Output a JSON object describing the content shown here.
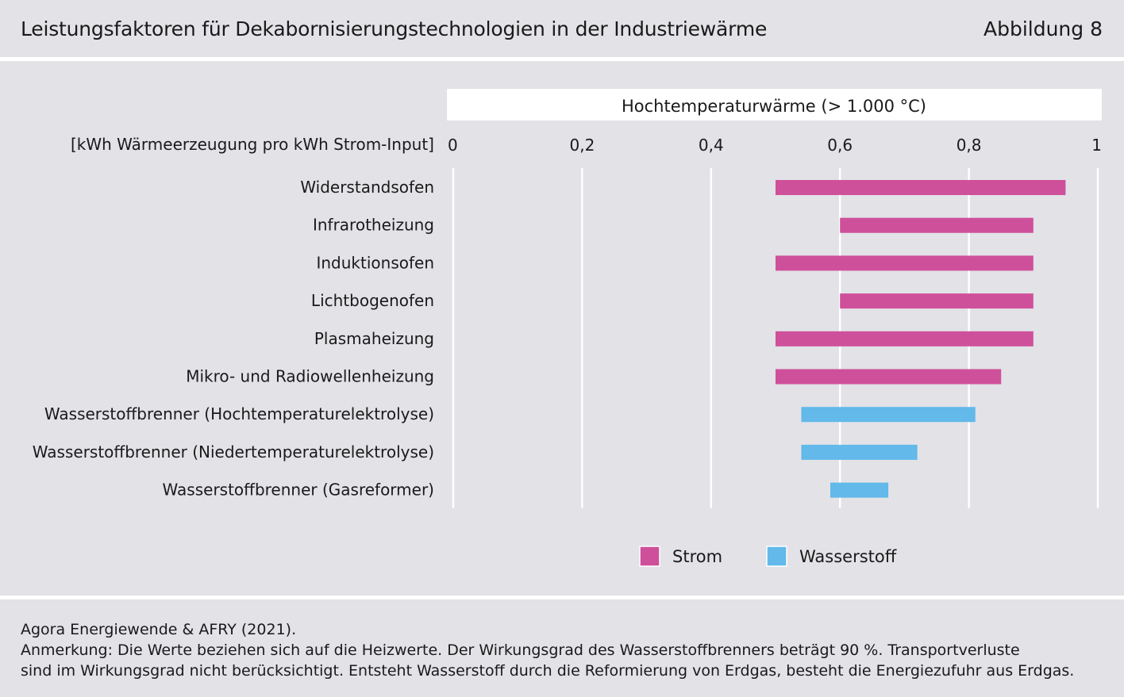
{
  "header": {
    "title": "Leistungsfaktoren für Dekabornisierungstechnologien in der Industriewärme",
    "figure_label": "Abbildung 8"
  },
  "chart_data": {
    "type": "bar",
    "subtype": "floating-range-horizontal",
    "panel_title": "Hochtemperaturwärme (> 1.000 °C)",
    "unit_label": "[kWh Wärmeerzeugung pro kWh Strom-Input]",
    "xlim": [
      0,
      1
    ],
    "xticks": [
      0,
      0.2,
      0.4,
      0.6,
      0.8,
      1
    ],
    "xtick_labels": [
      "0",
      "0,2",
      "0,4",
      "0,6",
      "0,8",
      "1"
    ],
    "grid": "vertical",
    "legend_position": "bottom-center",
    "series": [
      {
        "name": "Strom",
        "color": "#cf509a"
      },
      {
        "name": "Wasserstoff",
        "color": "#62b9ea"
      }
    ],
    "categories": [
      "Widerstandsofen",
      "Infrarotheizung",
      "Induktionsofen",
      "Lichtbogenofen",
      "Plasmaheizung",
      "Mikro- und Radiowellenheizung",
      "Wasserstoffbrenner (Hochtemperaturelektrolyse)",
      "Wasserstoffbrenner (Niedertemperaturelektrolyse)",
      "Wasserstoffbrenner (Gasreformer)"
    ],
    "ranges": [
      {
        "category": "Widerstandsofen",
        "series": "Strom",
        "min": 0.5,
        "max": 0.95
      },
      {
        "category": "Infrarotheizung",
        "series": "Strom",
        "min": 0.6,
        "max": 0.9
      },
      {
        "category": "Induktionsofen",
        "series": "Strom",
        "min": 0.5,
        "max": 0.9
      },
      {
        "category": "Lichtbogenofen",
        "series": "Strom",
        "min": 0.6,
        "max": 0.9
      },
      {
        "category": "Plasmaheizung",
        "series": "Strom",
        "min": 0.5,
        "max": 0.9
      },
      {
        "category": "Mikro- und Radiowellenheizung",
        "series": "Strom",
        "min": 0.5,
        "max": 0.85
      },
      {
        "category": "Wasserstoffbrenner (Hochtemperaturelektrolyse)",
        "series": "Wasserstoff",
        "min": 0.54,
        "max": 0.81
      },
      {
        "category": "Wasserstoffbrenner (Niedertemperaturelektrolyse)",
        "series": "Wasserstoff",
        "min": 0.54,
        "max": 0.72
      },
      {
        "category": "Wasserstoffbrenner (Gasreformer)",
        "series": "Wasserstoff",
        "min": 0.585,
        "max": 0.675
      }
    ]
  },
  "footer": {
    "source": "Agora Energiewende & AFRY (2021).",
    "note_line1": "Anmerkung: Die Werte beziehen sich auf die Heizwerte. Der Wirkungsgrad des Wasserstoffbrenners beträgt 90 %. Transportverluste",
    "note_line2": "sind im Wirkungsgrad nicht berücksichtigt. Entsteht Wasserstoff durch die Reformierung von Erdgas, besteht die Energiezufuhr aus Erdgas."
  }
}
